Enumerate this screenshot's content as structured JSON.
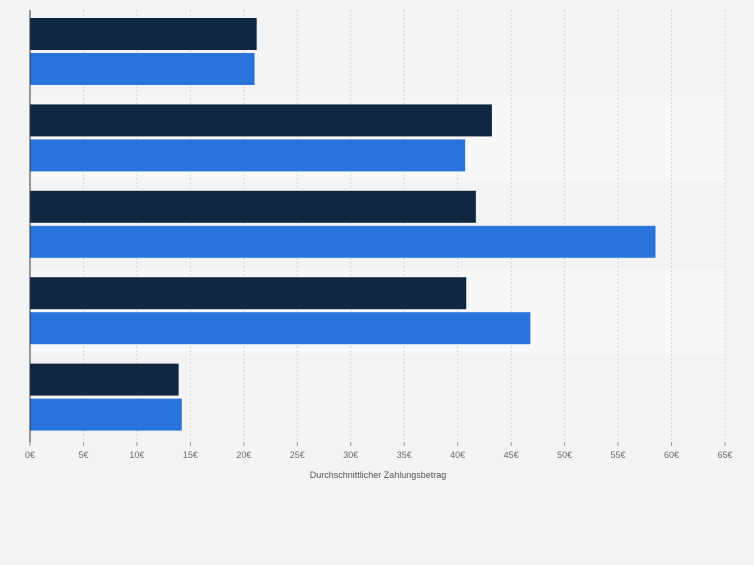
{
  "chart_data": {
    "type": "bar",
    "orientation": "horizontal",
    "categories": [
      "",
      "",
      "",
      "",
      ""
    ],
    "series": [
      {
        "color": "#0f2741",
        "values": [
          21.2,
          43.2,
          41.7,
          40.8,
          13.9
        ]
      },
      {
        "color": "#2874dc",
        "values": [
          21.0,
          40.7,
          58.5,
          46.8,
          14.2
        ]
      }
    ],
    "x_ticks": [
      "0€",
      "5€",
      "10€",
      "15€",
      "20€",
      "25€",
      "30€",
      "35€",
      "40€",
      "45€",
      "50€",
      "55€",
      "60€",
      "65€"
    ],
    "xlim": [
      0,
      65
    ],
    "xlabel": "Durchschnittlicher Zahlungsbetrag",
    "ylabel": "",
    "title": "",
    "grid": true,
    "legend": "none",
    "background_color": "#f4f4f4",
    "band_alt_color": "#f8f8f8"
  }
}
